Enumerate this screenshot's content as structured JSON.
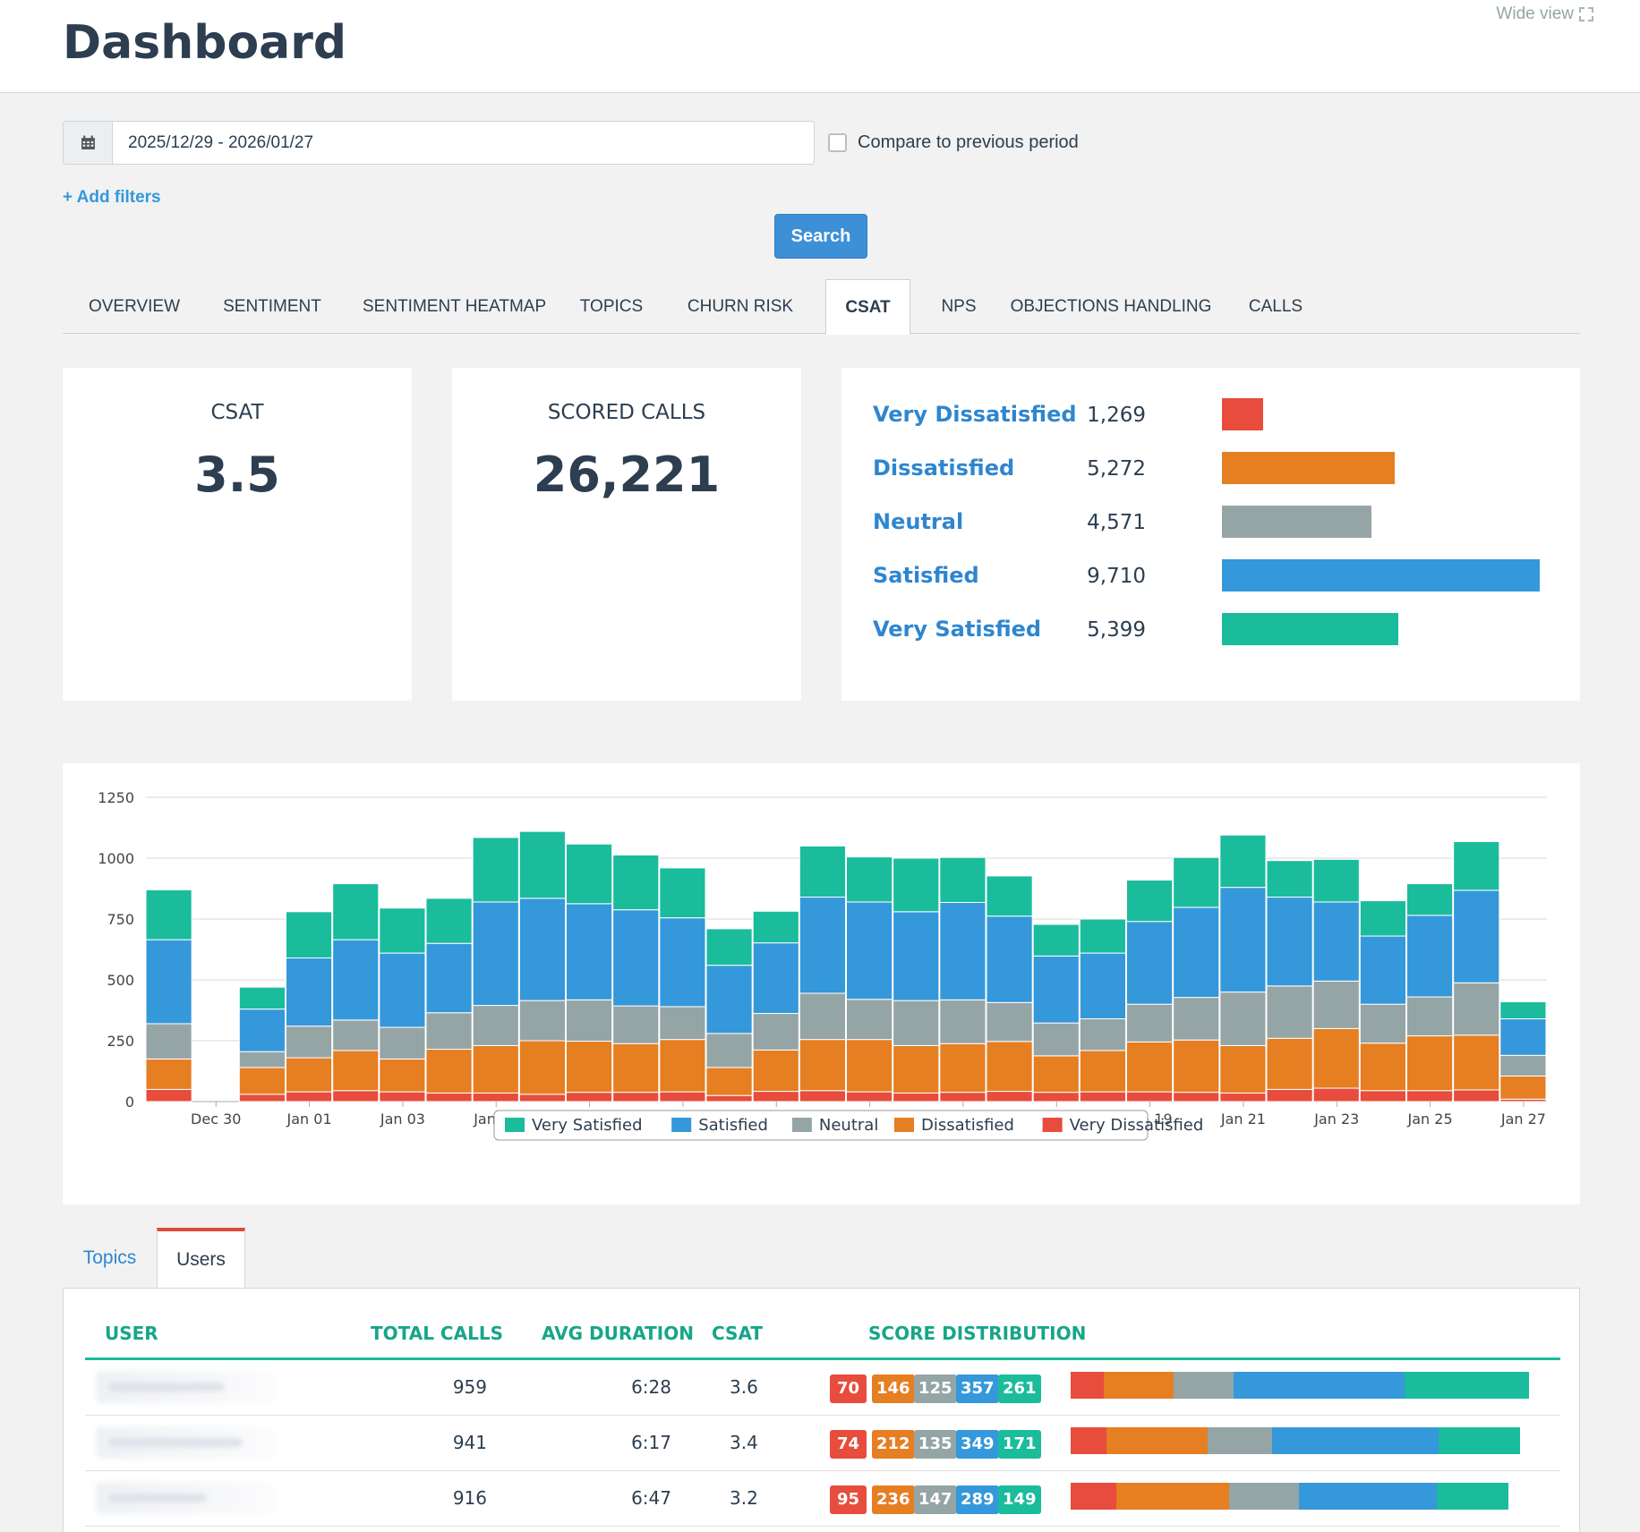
{
  "header": {
    "title": "Dashboard",
    "wide_view": "Wide view"
  },
  "filters": {
    "date_range": "2025/12/29 - 2026/01/27",
    "compare_label": "Compare to previous period",
    "add_filters": "+ Add filters",
    "search_button": "Search"
  },
  "tabs": [
    {
      "label": "OVERVIEW"
    },
    {
      "label": "SENTIMENT"
    },
    {
      "label": "SENTIMENT HEATMAP"
    },
    {
      "label": "TOPICS"
    },
    {
      "label": "CHURN RISK"
    },
    {
      "label": "CSAT",
      "active": true
    },
    {
      "label": "NPS"
    },
    {
      "label": "OBJECTIONS HANDLING"
    },
    {
      "label": "CALLS"
    }
  ],
  "kpis": {
    "csat": {
      "label": "CSAT",
      "value": "3.5"
    },
    "scored_calls": {
      "label": "SCORED CALLS",
      "value": "26,221"
    }
  },
  "distribution": [
    {
      "label": "Very Dissatisfied",
      "count": "1,269",
      "value": 1269,
      "color": "#e74c3c"
    },
    {
      "label": "Dissatisfied",
      "count": "5,272",
      "value": 5272,
      "color": "#e67e22"
    },
    {
      "label": "Neutral",
      "count": "4,571",
      "value": 4571,
      "color": "#95a5a6"
    },
    {
      "label": "Satisfied",
      "count": "9,710",
      "value": 9710,
      "color": "#3498db"
    },
    {
      "label": "Very Satisfied",
      "count": "5,399",
      "value": 5399,
      "color": "#1abc9c"
    }
  ],
  "chart_data": {
    "type": "bar",
    "stacked": true,
    "x": [
      "Dec 29",
      "Dec 30",
      "Dec 31",
      "Jan 01",
      "Jan 02",
      "Jan 03",
      "Jan 04",
      "Jan 05",
      "Jan 06",
      "Jan 07",
      "Jan 08",
      "Jan 09",
      "Jan 10",
      "Jan 11",
      "Jan 12",
      "Jan 13",
      "Jan 14",
      "Jan 15",
      "Jan 16",
      "Jan 17",
      "Jan 18",
      "Jan 19",
      "Jan 20",
      "Jan 21",
      "Jan 22",
      "Jan 23",
      "Jan 24",
      "Jan 25",
      "Jan 26",
      "Jan 27"
    ],
    "x_tick_labels": [
      "Dec 30",
      "Jan 01",
      "Jan 03",
      "Jan 05",
      "Jan 07",
      "Jan 09",
      "Jan 11",
      "Jan 13",
      "Jan 15",
      "Jan 17",
      "Jan 19",
      "Jan 21",
      "Jan 23",
      "Jan 25",
      "Jan 27"
    ],
    "y_ticks": [
      0,
      250,
      500,
      750,
      1000,
      1250
    ],
    "ylim": [
      0,
      1250
    ],
    "grid": true,
    "legend_position": "bottom-center",
    "series": [
      {
        "name": "Very Dissatisfied",
        "color": "#e74c3c",
        "values": [
          50,
          0,
          30,
          40,
          45,
          40,
          35,
          35,
          30,
          38,
          38,
          40,
          25,
          42,
          45,
          40,
          35,
          38,
          42,
          38,
          40,
          40,
          38,
          35,
          50,
          55,
          45,
          45,
          48,
          10
        ]
      },
      {
        "name": "Dissatisfied",
        "color": "#e67e22",
        "values": [
          125,
          0,
          110,
          140,
          165,
          135,
          180,
          195,
          220,
          210,
          200,
          215,
          115,
          170,
          210,
          215,
          195,
          200,
          205,
          150,
          170,
          205,
          215,
          195,
          210,
          245,
          195,
          225,
          225,
          95
        ]
      },
      {
        "name": "Neutral",
        "color": "#95a5a6",
        "values": [
          145,
          0,
          65,
          130,
          125,
          130,
          150,
          165,
          165,
          170,
          155,
          135,
          140,
          150,
          190,
          165,
          185,
          180,
          160,
          135,
          130,
          155,
          175,
          220,
          215,
          195,
          160,
          160,
          215,
          85
        ]
      },
      {
        "name": "Satisfied",
        "color": "#3498db",
        "values": [
          345,
          0,
          175,
          280,
          330,
          305,
          285,
          425,
          420,
          395,
          395,
          365,
          280,
          290,
          395,
          400,
          365,
          400,
          355,
          275,
          270,
          340,
          370,
          430,
          365,
          325,
          280,
          335,
          380,
          150
        ]
      },
      {
        "name": "Very Satisfied",
        "color": "#1abc9c",
        "values": [
          205,
          0,
          90,
          190,
          230,
          185,
          185,
          265,
          275,
          245,
          225,
          205,
          150,
          130,
          210,
          185,
          220,
          185,
          165,
          130,
          140,
          170,
          205,
          215,
          150,
          175,
          145,
          130,
          200,
          70
        ]
      }
    ]
  },
  "bottom_tabs": {
    "topics": "Topics",
    "users": "Users"
  },
  "table": {
    "headers": {
      "user": "USER",
      "total_calls": "TOTAL CALLS",
      "avg_duration": "AVG DURATION",
      "csat": "CSAT",
      "score_distribution": "SCORE DISTRIBUTION"
    },
    "rows": [
      {
        "total_calls": "959",
        "avg_duration": "6:28",
        "csat": "3.6",
        "scores": [
          "70",
          "146",
          "125",
          "357",
          "261"
        ],
        "score_values": [
          70,
          146,
          125,
          357,
          261
        ]
      },
      {
        "total_calls": "941",
        "avg_duration": "6:17",
        "csat": "3.4",
        "scores": [
          "74",
          "212",
          "135",
          "349",
          "171"
        ],
        "score_values": [
          74,
          212,
          135,
          349,
          171
        ]
      },
      {
        "total_calls": "916",
        "avg_duration": "6:47",
        "csat": "3.2",
        "scores": [
          "95",
          "236",
          "147",
          "289",
          "149"
        ],
        "score_values": [
          95,
          236,
          147,
          289,
          149
        ]
      }
    ]
  }
}
